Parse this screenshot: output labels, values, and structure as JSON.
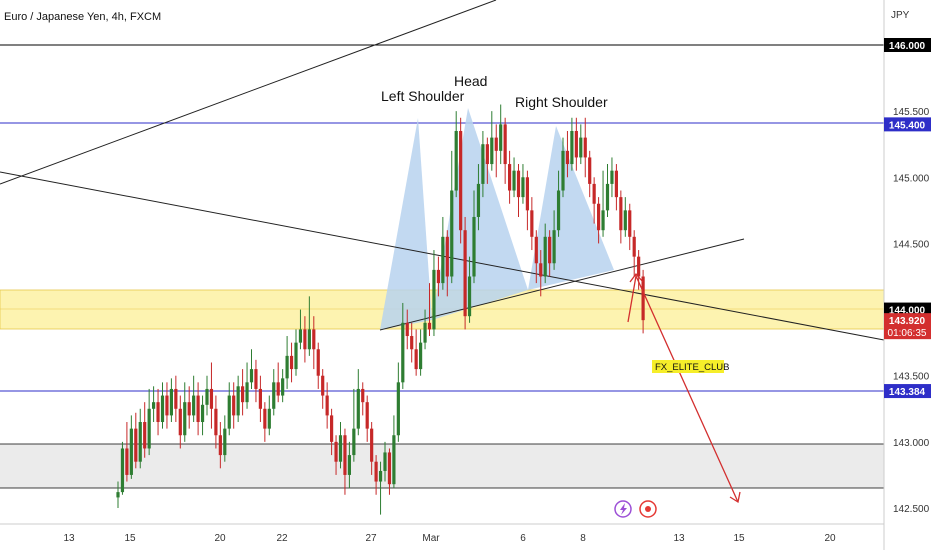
{
  "header": {
    "title": "Euro / Japanese Yen, 4h, FXCM"
  },
  "chart_data": {
    "type": "candlestick",
    "symbol": "Euro / Japanese Yen, 4h, FXCM",
    "currency": "JPY",
    "ylim": [
      142.38,
      146.3
    ],
    "x_ticks": [
      "13",
      "15",
      "20",
      "22",
      "27",
      "Mar",
      "6",
      "8",
      "13",
      "15",
      "20"
    ],
    "y_ticks": [
      "146.000",
      "145.500",
      "145.000",
      "144.500",
      "144.000",
      "143.500",
      "143.000",
      "142.500"
    ],
    "price_labels": [
      {
        "label": "146.000",
        "value": 146.0,
        "color": "#000000"
      },
      {
        "label": "145.400",
        "value": 145.4,
        "color": "#2e2ec8"
      },
      {
        "label": "144.000",
        "value": 144.0,
        "color": "#000000"
      },
      {
        "label": "143.920",
        "value": 143.92,
        "color": "#d32f2f"
      },
      {
        "label": "143.384",
        "value": 143.384,
        "color": "#2e2ec8"
      }
    ],
    "countdown": "01:06:35",
    "horizontal_lines": [
      {
        "value": 146.0,
        "color": "#000000"
      },
      {
        "value": 145.4,
        "color": "#2e2ec8"
      },
      {
        "value": 143.384,
        "color": "#2e2ec8"
      }
    ],
    "zones": [
      {
        "from": 143.82,
        "to": 144.12,
        "color": "#fdf3b0"
      },
      {
        "from": 142.65,
        "to": 143.0,
        "color": "#ebebeb"
      }
    ],
    "annotations": [
      "Left Shoulder",
      "Head",
      "Right Shoulder"
    ],
    "badge": "FX_ELITE_CLUB",
    "candles": [
      [
        142.58,
        142.62,
        142.5,
        142.7
      ],
      [
        142.62,
        142.95,
        142.6,
        143.0
      ],
      [
        142.95,
        142.75,
        142.7,
        143.15
      ],
      [
        142.75,
        143.1,
        142.72,
        143.2
      ],
      [
        143.1,
        142.85,
        142.8,
        143.22
      ],
      [
        142.85,
        143.15,
        142.8,
        143.25
      ],
      [
        143.15,
        142.95,
        142.88,
        143.3
      ],
      [
        142.95,
        143.25,
        142.9,
        143.4
      ],
      [
        143.25,
        143.3,
        143.15,
        143.42
      ],
      [
        143.3,
        143.15,
        143.05,
        143.4
      ],
      [
        143.15,
        143.35,
        143.1,
        143.45
      ],
      [
        143.35,
        143.2,
        143.1,
        143.45
      ],
      [
        143.2,
        143.4,
        143.15,
        143.48
      ],
      [
        143.4,
        143.25,
        143.15,
        143.5
      ],
      [
        143.25,
        143.05,
        142.95,
        143.35
      ],
      [
        143.05,
        143.3,
        143.0,
        143.45
      ],
      [
        143.3,
        143.2,
        143.1,
        143.42
      ],
      [
        143.2,
        143.35,
        143.15,
        143.5
      ],
      [
        143.35,
        143.15,
        143.05,
        143.45
      ],
      [
        143.15,
        143.28,
        143.05,
        143.35
      ],
      [
        143.28,
        143.4,
        143.2,
        143.5
      ],
      [
        143.4,
        143.25,
        143.1,
        143.6
      ],
      [
        143.25,
        143.05,
        142.95,
        143.35
      ],
      [
        143.05,
        142.9,
        142.8,
        143.15
      ],
      [
        142.9,
        143.1,
        142.85,
        143.2
      ],
      [
        143.1,
        143.35,
        143.05,
        143.45
      ],
      [
        143.35,
        143.2,
        143.1,
        143.45
      ],
      [
        143.2,
        143.42,
        143.15,
        143.5
      ],
      [
        143.42,
        143.3,
        143.2,
        143.55
      ],
      [
        143.3,
        143.45,
        143.25,
        143.6
      ],
      [
        143.45,
        143.55,
        143.4,
        143.7
      ],
      [
        143.55,
        143.4,
        143.3,
        143.62
      ],
      [
        143.4,
        143.25,
        143.15,
        143.5
      ],
      [
        143.25,
        143.1,
        143.0,
        143.3
      ],
      [
        143.1,
        143.25,
        143.05,
        143.35
      ],
      [
        143.25,
        143.45,
        143.2,
        143.55
      ],
      [
        143.45,
        143.35,
        143.3,
        143.6
      ],
      [
        143.35,
        143.48,
        143.3,
        143.55
      ],
      [
        143.48,
        143.65,
        143.4,
        143.8
      ],
      [
        143.65,
        143.55,
        143.45,
        143.75
      ],
      [
        143.55,
        143.75,
        143.5,
        143.85
      ],
      [
        143.75,
        143.85,
        143.7,
        144.0
      ],
      [
        143.85,
        143.7,
        143.6,
        143.95
      ],
      [
        143.7,
        143.85,
        143.65,
        144.1
      ],
      [
        143.85,
        143.7,
        143.55,
        143.95
      ],
      [
        143.7,
        143.5,
        143.4,
        143.75
      ],
      [
        143.5,
        143.35,
        143.25,
        143.55
      ],
      [
        143.35,
        143.2,
        143.1,
        143.45
      ],
      [
        143.2,
        143.0,
        142.9,
        143.25
      ],
      [
        143.0,
        142.85,
        142.75,
        143.05
      ],
      [
        142.85,
        143.05,
        142.8,
        143.15
      ],
      [
        143.05,
        142.75,
        142.6,
        143.1
      ],
      [
        142.75,
        142.9,
        142.65,
        143.0
      ],
      [
        142.9,
        143.1,
        142.85,
        143.4
      ],
      [
        143.1,
        143.4,
        143.05,
        143.55
      ],
      [
        143.4,
        143.3,
        143.2,
        143.45
      ],
      [
        143.3,
        143.1,
        143.0,
        143.35
      ],
      [
        143.1,
        142.85,
        142.75,
        143.15
      ],
      [
        142.85,
        142.7,
        142.6,
        142.9
      ],
      [
        142.7,
        142.78,
        142.45,
        142.85
      ],
      [
        142.78,
        142.92,
        142.7,
        143.0
      ],
      [
        142.92,
        142.68,
        142.6,
        142.95
      ],
      [
        142.68,
        143.05,
        142.65,
        143.2
      ],
      [
        143.05,
        143.45,
        143.0,
        143.6
      ],
      [
        143.45,
        143.9,
        143.4,
        144.05
      ],
      [
        143.9,
        143.8,
        143.7,
        144.0
      ],
      [
        143.8,
        143.7,
        143.6,
        143.9
      ],
      [
        143.7,
        143.55,
        143.5,
        143.85
      ],
      [
        143.55,
        143.75,
        143.5,
        143.85
      ],
      [
        143.75,
        143.9,
        143.7,
        144.0
      ],
      [
        143.9,
        143.85,
        143.8,
        144.2
      ],
      [
        143.85,
        144.3,
        143.8,
        144.45
      ],
      [
        144.3,
        144.2,
        144.1,
        144.4
      ],
      [
        144.2,
        144.55,
        144.15,
        144.7
      ],
      [
        144.55,
        144.25,
        144.1,
        144.6
      ],
      [
        144.25,
        144.9,
        144.2,
        145.2
      ],
      [
        144.9,
        145.35,
        144.85,
        145.5
      ],
      [
        145.35,
        144.6,
        144.5,
        145.45
      ],
      [
        144.6,
        143.95,
        143.85,
        144.7
      ],
      [
        143.95,
        144.25,
        143.9,
        144.4
      ],
      [
        144.25,
        144.7,
        144.2,
        144.9
      ],
      [
        144.7,
        144.95,
        144.6,
        145.1
      ],
      [
        144.95,
        145.25,
        144.85,
        145.35
      ],
      [
        145.25,
        145.1,
        144.95,
        145.3
      ],
      [
        145.1,
        145.3,
        145.05,
        145.5
      ],
      [
        145.3,
        145.2,
        145.0,
        145.4
      ],
      [
        145.2,
        145.4,
        145.1,
        145.55
      ],
      [
        145.4,
        145.1,
        144.95,
        145.45
      ],
      [
        145.1,
        144.9,
        144.8,
        145.2
      ],
      [
        144.9,
        145.05,
        144.85,
        145.15
      ],
      [
        145.05,
        144.85,
        144.7,
        145.1
      ],
      [
        144.85,
        145.0,
        144.8,
        145.1
      ],
      [
        145.0,
        144.75,
        144.6,
        145.05
      ],
      [
        144.75,
        144.55,
        144.45,
        144.85
      ],
      [
        144.55,
        144.35,
        144.2,
        144.6
      ],
      [
        144.35,
        144.25,
        144.1,
        144.45
      ],
      [
        144.25,
        144.55,
        144.2,
        144.65
      ],
      [
        144.55,
        144.35,
        144.25,
        144.6
      ],
      [
        144.35,
        144.6,
        144.3,
        144.75
      ],
      [
        144.6,
        144.9,
        144.55,
        145.05
      ],
      [
        144.9,
        145.2,
        144.85,
        145.3
      ],
      [
        145.2,
        145.1,
        145.0,
        145.35
      ],
      [
        145.1,
        145.35,
        145.05,
        145.45
      ],
      [
        145.35,
        145.15,
        145.05,
        145.45
      ],
      [
        145.15,
        145.3,
        145.1,
        145.4
      ],
      [
        145.3,
        145.15,
        145.0,
        145.45
      ],
      [
        145.15,
        144.95,
        144.85,
        145.2
      ],
      [
        144.95,
        144.8,
        144.65,
        145.0
      ],
      [
        144.8,
        144.6,
        144.5,
        144.85
      ],
      [
        144.6,
        144.75,
        144.55,
        145.05
      ],
      [
        144.75,
        144.95,
        144.7,
        145.1
      ],
      [
        144.95,
        145.05,
        144.85,
        145.15
      ],
      [
        145.05,
        144.85,
        144.75,
        145.1
      ],
      [
        144.85,
        144.6,
        144.5,
        144.9
      ],
      [
        144.6,
        144.75,
        144.55,
        144.85
      ],
      [
        144.75,
        144.55,
        144.45,
        144.8
      ],
      [
        144.55,
        144.4,
        144.25,
        144.6
      ],
      [
        144.4,
        144.25,
        144.15,
        144.45
      ],
      [
        144.25,
        143.92,
        143.82,
        144.3
      ]
    ]
  }
}
